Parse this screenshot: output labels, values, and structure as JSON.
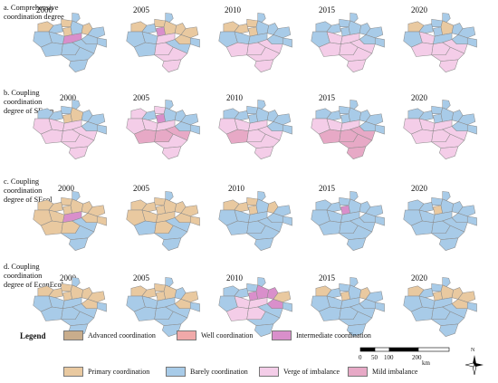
{
  "rows": [
    {
      "label_lines": [
        "a. Comprehensive",
        "coordination degree"
      ]
    },
    {
      "label_lines": [
        "b. Coupling",
        "coordination",
        "degree of SEcon"
      ]
    },
    {
      "label_lines": [
        "c. Coupling",
        "coordination",
        "degree of SEcol"
      ]
    },
    {
      "label_lines": [
        "d. Coupling",
        "coordination",
        "degree of EconEcol"
      ]
    }
  ],
  "years": [
    "2000",
    "2005",
    "2010",
    "2015",
    "2020"
  ],
  "legend": {
    "title": "Legend",
    "items": [
      {
        "label": "Advanced coordination",
        "color": "#c9ad8c"
      },
      {
        "label": "Well coordination",
        "color": "#f0a9a9"
      },
      {
        "label": "Intermediate coordination",
        "color": "#d98fcb"
      },
      {
        "label": "Primary coordination",
        "color": "#e9c9a0"
      },
      {
        "label": "Barely coordination",
        "color": "#a8cbe8"
      },
      {
        "label": "Verge of imbalance",
        "color": "#f4cde8"
      },
      {
        "label": "Mild imbalance",
        "color": "#e7a9c6"
      }
    ]
  },
  "scale_bar": {
    "labels": [
      "0",
      "50",
      "100",
      "200"
    ],
    "unit": "km"
  },
  "north_label": "N",
  "maps": [
    [
      "#a8cbe8",
      "#e9c9a0",
      "#e9c9a0",
      "#a8cbe8",
      "#e9c9a0",
      "#a8cbe8",
      "#e9c9a0",
      "#a8cbe8",
      "#a8cbe8",
      "#a8cbe8",
      "#a8cbe8",
      "#d98fcb",
      "#a8cbe8",
      "#a8cbe8",
      "#a8cbe8",
      "#a8cbe8",
      "#a8cbe8",
      "#a8cbe8"
    ],
    [
      "#a8cbe8",
      "#e9c9a0",
      "#e9c9a0",
      "#a8cbe8",
      "#d98fcb",
      "#e9c9a0",
      "#e9c9a0",
      "#e9c9a0",
      "#e9c9a0",
      "#a8cbe8",
      "#a8cbe8",
      "#f4cde8",
      "#a8cbe8",
      "#a8cbe8",
      "#f4cde8",
      "#a8cbe8",
      "#f4cde8",
      "#f4cde8"
    ],
    [
      "#a8cbe8",
      "#e9c9a0",
      "#e9c9a0",
      "#e9c9a0",
      "#e9c9a0",
      "#a8cbe8",
      "#a8cbe8",
      "#a8cbe8",
      "#a8cbe8",
      "#a8cbe8",
      "#a8cbe8",
      "#a8cbe8",
      "#a8cbe8",
      "#f4cde8",
      "#f4cde8",
      "#f4cde8",
      "#f4cde8",
      "#f4cde8"
    ],
    [
      "#a8cbe8",
      "#a8cbe8",
      "#a8cbe8",
      "#a8cbe8",
      "#a8cbe8",
      "#a8cbe8",
      "#a8cbe8",
      "#a8cbe8",
      "#a8cbe8",
      "#a8cbe8",
      "#f4cde8",
      "#f4cde8",
      "#a8cbe8",
      "#f4cde8",
      "#f4cde8",
      "#f4cde8",
      "#f4cde8",
      "#f4cde8"
    ],
    [
      "#a8cbe8",
      "#a8cbe8",
      "#e9c9a0",
      "#a8cbe8",
      "#a8cbe8",
      "#e9c9a0",
      "#a8cbe8",
      "#a8cbe8",
      "#a8cbe8",
      "#a8cbe8",
      "#f4cde8",
      "#a8cbe8",
      "#a8cbe8",
      "#f4cde8",
      "#f4cde8",
      "#f4cde8",
      "#f4cde8",
      "#f4cde8"
    ],
    [
      "#a8cbe8",
      "#a8cbe8",
      "#a8cbe8",
      "#a8cbe8",
      "#e9c9a0",
      "#e9c9a0",
      "#a8cbe8",
      "#a8cbe8",
      "#a8cbe8",
      "#f4cde8",
      "#f4cde8",
      "#f4cde8",
      "#a8cbe8",
      "#f4cde8",
      "#f4cde8",
      "#f4cde8",
      "#f4cde8",
      "#f4cde8"
    ],
    [
      "#a8cbe8",
      "#f4cde8",
      "#f4cde8",
      "#a8cbe8",
      "#d98fcb",
      "#a8cbe8",
      "#a8cbe8",
      "#a8cbe8",
      "#a8cbe8",
      "#f4cde8",
      "#f4cde8",
      "#f4cde8",
      "#a8cbe8",
      "#e7a9c6",
      "#e7a9c6",
      "#e7a9c6",
      "#f4cde8",
      "#f4cde8"
    ],
    [
      "#a8cbe8",
      "#a8cbe8",
      "#a8cbe8",
      "#a8cbe8",
      "#a8cbe8",
      "#a8cbe8",
      "#a8cbe8",
      "#a8cbe8",
      "#a8cbe8",
      "#f4cde8",
      "#f4cde8",
      "#f4cde8",
      "#a8cbe8",
      "#e7a9c6",
      "#f4cde8",
      "#f4cde8",
      "#f4cde8",
      "#f4cde8"
    ],
    [
      "#a8cbe8",
      "#a8cbe8",
      "#a8cbe8",
      "#a8cbe8",
      "#a8cbe8",
      "#a8cbe8",
      "#a8cbe8",
      "#a8cbe8",
      "#a8cbe8",
      "#f4cde8",
      "#f4cde8",
      "#f4cde8",
      "#a8cbe8",
      "#e7a9c6",
      "#e7a9c6",
      "#e7a9c6",
      "#e7a9c6",
      "#e7a9c6"
    ],
    [
      "#a8cbe8",
      "#a8cbe8",
      "#a8cbe8",
      "#a8cbe8",
      "#a8cbe8",
      "#a8cbe8",
      "#a8cbe8",
      "#a8cbe8",
      "#a8cbe8",
      "#f4cde8",
      "#f4cde8",
      "#f4cde8",
      "#a8cbe8",
      "#f4cde8",
      "#f4cde8",
      "#f4cde8",
      "#f4cde8",
      "#f4cde8"
    ],
    [
      "#a8cbe8",
      "#e9c9a0",
      "#e9c9a0",
      "#e9c9a0",
      "#e9c9a0",
      "#e9c9a0",
      "#e9c9a0",
      "#e9c9a0",
      "#e9c9a0",
      "#e9c9a0",
      "#e9c9a0",
      "#d98fcb",
      "#e9c9a0",
      "#e9c9a0",
      "#e9c9a0",
      "#a8cbe8",
      "#a8cbe8",
      "#a8cbe8"
    ],
    [
      "#a8cbe8",
      "#e9c9a0",
      "#e9c9a0",
      "#e9c9a0",
      "#e9c9a0",
      "#e9c9a0",
      "#e9c9a0",
      "#e9c9a0",
      "#e9c9a0",
      "#e9c9a0",
      "#e9c9a0",
      "#e9c9a0",
      "#e9c9a0",
      "#a8cbe8",
      "#e9c9a0",
      "#a8cbe8",
      "#a8cbe8",
      "#a8cbe8"
    ],
    [
      "#a8cbe8",
      "#e9c9a0",
      "#e9c9a0",
      "#e9c9a0",
      "#e9c9a0",
      "#a8cbe8",
      "#e9c9a0",
      "#a8cbe8",
      "#a8cbe8",
      "#a8cbe8",
      "#a8cbe8",
      "#a8cbe8",
      "#a8cbe8",
      "#a8cbe8",
      "#a8cbe8",
      "#a8cbe8",
      "#a8cbe8",
      "#a8cbe8"
    ],
    [
      "#a8cbe8",
      "#a8cbe8",
      "#a8cbe8",
      "#a8cbe8",
      "#d98fcb",
      "#a8cbe8",
      "#a8cbe8",
      "#a8cbe8",
      "#a8cbe8",
      "#a8cbe8",
      "#a8cbe8",
      "#a8cbe8",
      "#a8cbe8",
      "#a8cbe8",
      "#a8cbe8",
      "#a8cbe8",
      "#a8cbe8",
      "#a8cbe8"
    ],
    [
      "#a8cbe8",
      "#a8cbe8",
      "#a8cbe8",
      "#a8cbe8",
      "#e9c9a0",
      "#a8cbe8",
      "#a8cbe8",
      "#a8cbe8",
      "#a8cbe8",
      "#a8cbe8",
      "#a8cbe8",
      "#a8cbe8",
      "#a8cbe8",
      "#a8cbe8",
      "#a8cbe8",
      "#a8cbe8",
      "#a8cbe8",
      "#a8cbe8"
    ],
    [
      "#a8cbe8",
      "#e9c9a0",
      "#e9c9a0",
      "#e9c9a0",
      "#e9c9a0",
      "#e9c9a0",
      "#e9c9a0",
      "#e9c9a0",
      "#e9c9a0",
      "#a8cbe8",
      "#a8cbe8",
      "#a8cbe8",
      "#a8cbe8",
      "#a8cbe8",
      "#a8cbe8",
      "#a8cbe8",
      "#a8cbe8",
      "#a8cbe8"
    ],
    [
      "#a8cbe8",
      "#e9c9a0",
      "#e9c9a0",
      "#e9c9a0",
      "#e9c9a0",
      "#e9c9a0",
      "#a8cbe8",
      "#e9c9a0",
      "#e9c9a0",
      "#a8cbe8",
      "#a8cbe8",
      "#a8cbe8",
      "#a8cbe8",
      "#a8cbe8",
      "#a8cbe8",
      "#a8cbe8",
      "#a8cbe8",
      "#a8cbe8"
    ],
    [
      "#a8cbe8",
      "#a8cbe8",
      "#a8cbe8",
      "#a8cbe8",
      "#d98fcb",
      "#d98fcb",
      "#d98fcb",
      "#e9c9a0",
      "#d98fcb",
      "#a8cbe8",
      "#f4cde8",
      "#f4cde8",
      "#a8cbe8",
      "#f4cde8",
      "#f4cde8",
      "#a8cbe8",
      "#a8cbe8",
      "#a8cbe8"
    ],
    [
      "#a8cbe8",
      "#a8cbe8",
      "#e9c9a0",
      "#a8cbe8",
      "#e9c9a0",
      "#a8cbe8",
      "#e9c9a0",
      "#a8cbe8",
      "#a8cbe8",
      "#a8cbe8",
      "#a8cbe8",
      "#a8cbe8",
      "#a8cbe8",
      "#a8cbe8",
      "#a8cbe8",
      "#a8cbe8",
      "#a8cbe8",
      "#a8cbe8"
    ],
    [
      "#a8cbe8",
      "#a8cbe8",
      "#e9c9a0",
      "#a8cbe8",
      "#e9c9a0",
      "#e9c9a0",
      "#e9c9a0",
      "#e9c9a0",
      "#e9c9a0",
      "#a8cbe8",
      "#a8cbe8",
      "#a8cbe8",
      "#a8cbe8",
      "#a8cbe8",
      "#a8cbe8",
      "#a8cbe8",
      "#a8cbe8",
      "#a8cbe8"
    ]
  ]
}
